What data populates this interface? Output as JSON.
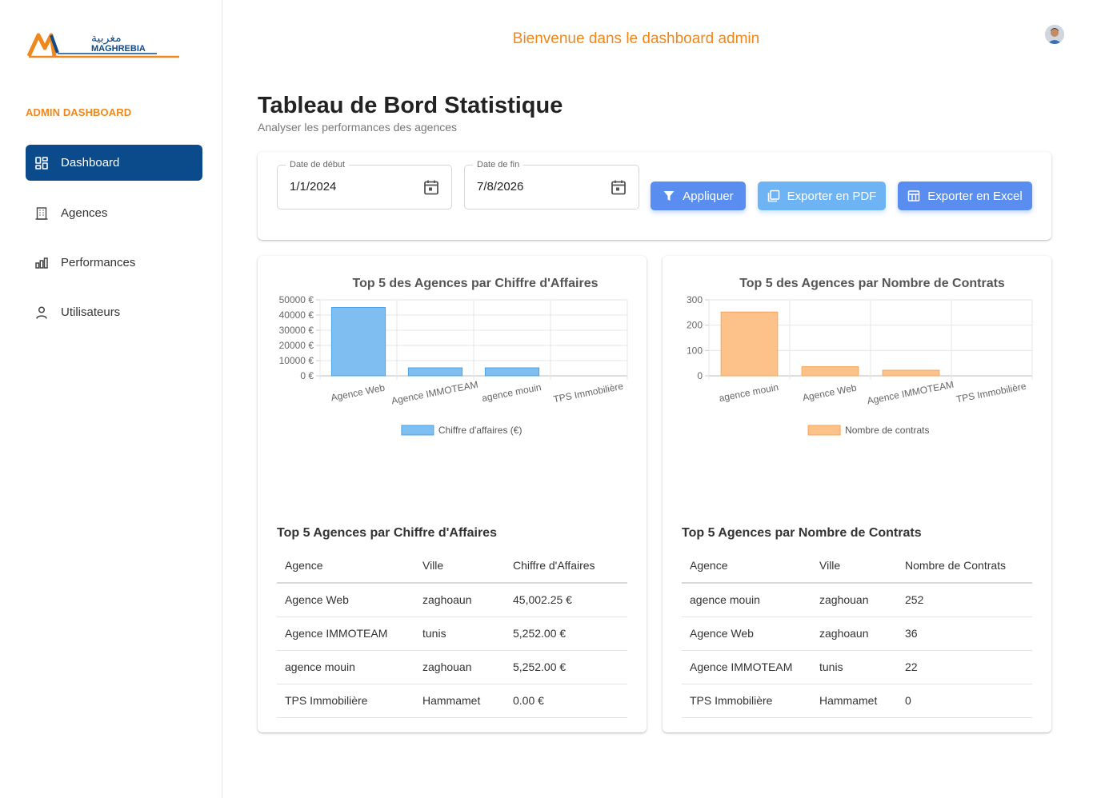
{
  "brand": {
    "name": "MAGHREBIA",
    "arabic_name": "مغربية",
    "colors": {
      "orange": "#f0871c",
      "blue": "#0b4a8b"
    }
  },
  "sidebar": {
    "section_title": "ADMIN DASHBOARD",
    "items": [
      {
        "label": "Dashboard",
        "icon": "dashboard-icon",
        "active": true
      },
      {
        "label": "Agences",
        "icon": "building-icon",
        "active": false
      },
      {
        "label": "Performances",
        "icon": "bar-chart-icon",
        "active": false
      },
      {
        "label": "Utilisateurs",
        "icon": "user-icon",
        "active": false
      }
    ]
  },
  "header": {
    "welcome": "Bienvenue dans le dashboard admin",
    "avatar_icon": "user-avatar"
  },
  "main": {
    "title": "Tableau de Bord Statistique",
    "subtitle": "Analyser les performances des agences"
  },
  "filters": {
    "start_label": "Date de début",
    "start_value": "1/1/2024",
    "end_label": "Date de fin",
    "end_value": "7/8/2026",
    "apply_label": "Appliquer",
    "pdf_label": "Exporter en PDF",
    "excel_label": "Exporter en Excel"
  },
  "chart_data": [
    {
      "type": "bar",
      "title": "Top 5 des Agences par Chiffre d'Affaires",
      "categories": [
        "Agence Web",
        "Agence IMMOTEAM",
        "agence mouin",
        "TPS Immobilière"
      ],
      "series": [
        {
          "name": "Chiffre d'affaires (€)",
          "values": [
            45002.25,
            5252,
            5252,
            0
          ],
          "color": "#7ebef0",
          "border": "#4aa3e8"
        }
      ],
      "yticks": [
        "0 €",
        "10000 €",
        "20000 €",
        "30000 €",
        "40000 €",
        "50000 €"
      ],
      "ylim": [
        0,
        50000
      ],
      "legend": "bottom",
      "grid": true
    },
    {
      "type": "bar",
      "title": "Top 5 des Agences par Nombre de Contrats",
      "categories": [
        "agence mouin",
        "Agence Web",
        "Agence IMMOTEAM",
        "TPS Immobilière"
      ],
      "series": [
        {
          "name": "Nombre de contrats",
          "values": [
            252,
            36,
            22,
            0
          ],
          "color": "#fdc28a",
          "border": "#f6a55a"
        }
      ],
      "yticks": [
        "0",
        "100",
        "200",
        "300"
      ],
      "ylim": [
        0,
        300
      ],
      "legend": "bottom",
      "grid": true
    }
  ],
  "tables": {
    "revenue": {
      "title": "Top 5 Agences par Chiffre d'Affaires",
      "headers": [
        "Agence",
        "Ville",
        "Chiffre d'Affaires"
      ],
      "rows": [
        [
          "Agence Web",
          "zaghoaun",
          "45,002.25 €"
        ],
        [
          "Agence IMMOTEAM",
          "tunis",
          "5,252.00 €"
        ],
        [
          "agence mouin",
          "zaghouan",
          "5,252.00 €"
        ],
        [
          "TPS Immobilière",
          "Hammamet",
          "0.00 €"
        ]
      ]
    },
    "contracts": {
      "title": "Top 5 Agences par Nombre de Contrats",
      "headers": [
        "Agence",
        "Ville",
        "Nombre de Contrats"
      ],
      "rows": [
        [
          "agence mouin",
          "zaghouan",
          "252"
        ],
        [
          "Agence Web",
          "zaghoaun",
          "36"
        ],
        [
          "Agence IMMOTEAM",
          "tunis",
          "22"
        ],
        [
          "TPS Immobilière",
          "Hammamet",
          "0"
        ]
      ]
    }
  }
}
